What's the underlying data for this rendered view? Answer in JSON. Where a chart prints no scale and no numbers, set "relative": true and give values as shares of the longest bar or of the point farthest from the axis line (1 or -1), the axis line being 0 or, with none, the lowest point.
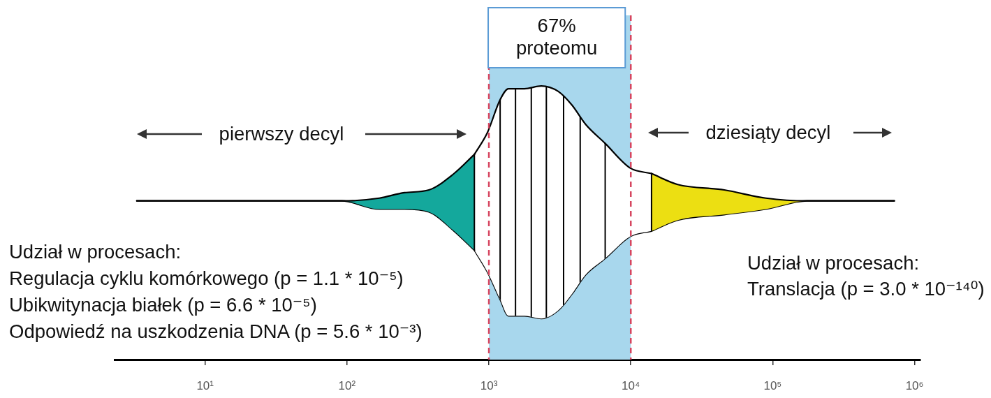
{
  "chart_data": {
    "type": "area",
    "relative": true,
    "log": "x",
    "xlim": [
      2.3,
      1100000
    ],
    "xticks": [
      {
        "value": 10,
        "label": "10¹"
      },
      {
        "value": 100,
        "label": "10²"
      },
      {
        "value": 1000,
        "label": "10³"
      },
      {
        "value": 10000,
        "label": "10⁴"
      },
      {
        "value": 100000,
        "label": "10⁵"
      },
      {
        "value": 1000000,
        "label": "10⁶"
      }
    ],
    "series": [
      {
        "color": "#14a89c",
        "x": [
          3.3,
          92,
          169,
          254,
          378,
          568,
          790
        ],
        "values": [
          0.58,
          0.58,
          0.59,
          0.61,
          0.62,
          0.68,
          0.75
        ]
      },
      {
        "type": "line",
        "color": "#000000",
        "x": [
          3.3,
          92,
          169,
          254,
          378,
          568,
          790
        ],
        "values": [
          0.58,
          0.58,
          0.55,
          0.55,
          0.54,
          0.47,
          0.4
        ]
      },
      {
        "color": "#ffffff",
        "x": [
          790,
          977,
          1200,
          1375,
          1780,
          2340,
          3080,
          3850,
          4800,
          6600,
          9900,
          14000
        ],
        "values": [
          0.75,
          0.83,
          0.95,
          0.99,
          0.99,
          1.0,
          0.98,
          0.93,
          0.86,
          0.79,
          0.7,
          0.68
        ]
      },
      {
        "type": "line",
        "color": "#000000",
        "x": [
          790,
          977,
          1200,
          1375,
          1780,
          2340,
          3080,
          3850,
          4800,
          6600,
          9900,
          14000
        ],
        "values": [
          0.4,
          0.32,
          0.22,
          0.16,
          0.16,
          0.15,
          0.18,
          0.24,
          0.31,
          0.37,
          0.45,
          0.47
        ]
      },
      {
        "color": "#ecdf12",
        "x": [
          14000,
          21400,
          45600,
          89600,
          175000,
          720000
        ],
        "values": [
          0.68,
          0.64,
          0.62,
          0.59,
          0.58,
          0.58
        ]
      },
      {
        "type": "line",
        "color": "#000000",
        "x": [
          14000,
          21400,
          45600,
          89600,
          175000,
          720000
        ],
        "values": [
          0.47,
          0.51,
          0.53,
          0.55,
          0.58,
          0.58
        ]
      }
    ],
    "ref_lines": [
      {
        "axis": "x",
        "value": 790,
        "color": "#000000"
      },
      {
        "axis": "x",
        "value": 1200,
        "color": "#000000"
      },
      {
        "axis": "x",
        "value": 1540,
        "color": "#000000"
      },
      {
        "axis": "x",
        "value": 1990,
        "color": "#000000"
      },
      {
        "axis": "x",
        "value": 2540,
        "color": "#000000"
      },
      {
        "axis": "x",
        "value": 3360,
        "color": "#000000"
      },
      {
        "axis": "x",
        "value": 4400,
        "color": "#000000"
      },
      {
        "axis": "x",
        "value": 6600,
        "color": "#000000"
      },
      {
        "axis": "x",
        "value": 14000,
        "color": "#000000"
      },
      {
        "axis": "x",
        "value": 1000,
        "color": "#d6455f",
        "line_style": "dashed"
      },
      {
        "axis": "x",
        "value": 10000,
        "color": "#d6455f",
        "line_style": "dashed"
      }
    ],
    "bands": [
      {
        "axis": "x",
        "from": 1000,
        "to": 10000,
        "label": "67% proteomu",
        "color": "#a8d7ed"
      }
    ],
    "annotations": [
      "pierwszy decyl",
      "dziesiąty decyl",
      "Udział w procesach:",
      "Regulacja cyklu komórkowego (p = 1.1 * 10⁻⁵)",
      "Ubikwitynacja białek (p = 6.6 * 10⁻⁵)",
      "Odpowiedź na uszkodzenia DNA (p = 5.6 * 10⁻³)",
      "Udział w procesach:",
      "Translacja (p = 3.0 * 10⁻¹⁴⁰)"
    ]
  }
}
